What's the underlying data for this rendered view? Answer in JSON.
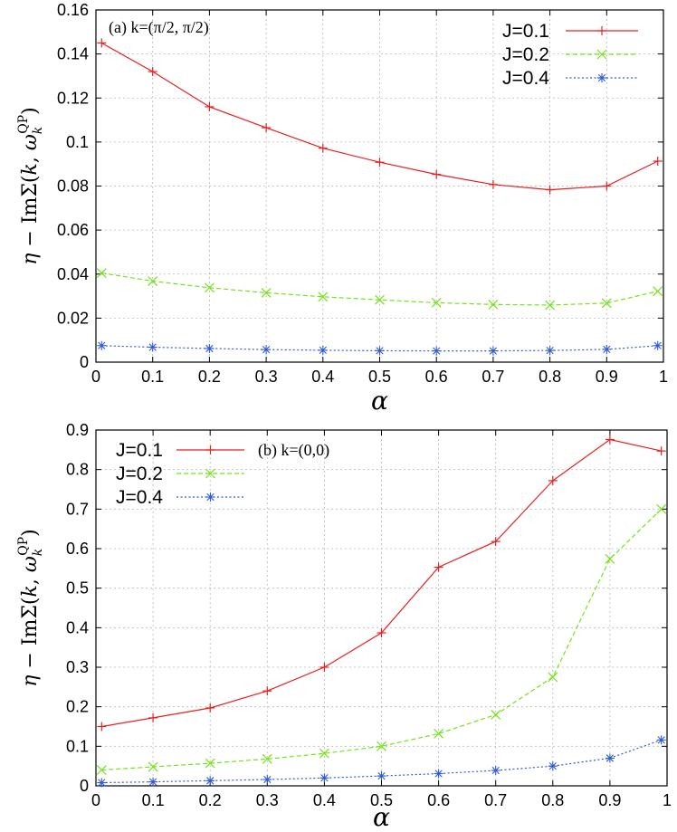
{
  "chart_data": [
    {
      "type": "line",
      "annotation": "(a) k=(π/2, π/2)",
      "xlabel": "α",
      "ylabel": "η − ImΣ(k, ω_k^QP)",
      "xlim": [
        0,
        1
      ],
      "ylim": [
        0,
        0.16
      ],
      "xticks": [
        "0",
        "0.1",
        "0.2",
        "0.3",
        "0.4",
        "0.5",
        "0.6",
        "0.7",
        "0.8",
        "0.9",
        "1"
      ],
      "yticks": [
        "0",
        "0.02",
        "0.04",
        "0.06",
        "0.08",
        "0.1",
        "0.12",
        "0.14",
        "0.16"
      ],
      "grid": true,
      "legend_position": "top-right",
      "series": [
        {
          "name": "J=0.1",
          "color": "#e8201f",
          "marker": "plus",
          "dash": "solid",
          "x": [
            0.01,
            0.1,
            0.2,
            0.3,
            0.4,
            0.5,
            0.6,
            0.7,
            0.8,
            0.9,
            0.99
          ],
          "y": [
            0.145,
            0.132,
            0.116,
            0.1065,
            0.0972,
            0.0908,
            0.0853,
            0.0807,
            0.0783,
            0.08,
            0.0913
          ]
        },
        {
          "name": "J=0.2",
          "color": "#76e21a",
          "marker": "cross",
          "dash": "dashed",
          "x": [
            0.01,
            0.1,
            0.2,
            0.3,
            0.4,
            0.5,
            0.6,
            0.7,
            0.8,
            0.9,
            0.99
          ],
          "y": [
            0.0405,
            0.0368,
            0.0338,
            0.0315,
            0.0297,
            0.0283,
            0.027,
            0.0262,
            0.0259,
            0.0268,
            0.0322
          ]
        },
        {
          "name": "J=0.4",
          "color": "#2e5bd8",
          "marker": "star",
          "dash": "dotted",
          "x": [
            0.01,
            0.1,
            0.2,
            0.3,
            0.4,
            0.5,
            0.6,
            0.7,
            0.8,
            0.9,
            0.99
          ],
          "y": [
            0.0075,
            0.0068,
            0.0062,
            0.0057,
            0.0054,
            0.0052,
            0.0051,
            0.0051,
            0.0053,
            0.0058,
            0.0075
          ]
        }
      ]
    },
    {
      "type": "line",
      "annotation": "(b) k=(0,0)",
      "xlabel": "α",
      "ylabel": "η − ImΣ(k, ω_k^QP)",
      "xlim": [
        0,
        1
      ],
      "ylim": [
        0,
        0.9
      ],
      "xticks": [
        "0",
        "0.1",
        "0.2",
        "0.3",
        "0.4",
        "0.5",
        "0.6",
        "0.7",
        "0.8",
        "0.9",
        "1"
      ],
      "yticks": [
        "0",
        "0.1",
        "0.2",
        "0.3",
        "0.4",
        "0.5",
        "0.6",
        "0.7",
        "0.8",
        "0.9"
      ],
      "grid": true,
      "legend_position": "top-left",
      "series": [
        {
          "name": "J=0.1",
          "color": "#e8201f",
          "marker": "plus",
          "dash": "solid",
          "x": [
            0.01,
            0.1,
            0.2,
            0.3,
            0.4,
            0.5,
            0.6,
            0.7,
            0.8,
            0.9,
            0.99
          ],
          "y": [
            0.15,
            0.172,
            0.197,
            0.24,
            0.3,
            0.387,
            0.553,
            0.618,
            0.772,
            0.876,
            0.847
          ]
        },
        {
          "name": "J=0.2",
          "color": "#76e21a",
          "marker": "cross",
          "dash": "dashed",
          "x": [
            0.01,
            0.1,
            0.2,
            0.3,
            0.4,
            0.5,
            0.6,
            0.7,
            0.8,
            0.9,
            0.99
          ],
          "y": [
            0.04,
            0.048,
            0.057,
            0.068,
            0.082,
            0.1,
            0.132,
            0.18,
            0.275,
            0.574,
            0.7
          ]
        },
        {
          "name": "J=0.4",
          "color": "#2e5bd8",
          "marker": "star",
          "dash": "dotted",
          "x": [
            0.01,
            0.1,
            0.2,
            0.3,
            0.4,
            0.5,
            0.6,
            0.7,
            0.8,
            0.9,
            0.99
          ],
          "y": [
            0.008,
            0.01,
            0.013,
            0.016,
            0.02,
            0.025,
            0.031,
            0.039,
            0.05,
            0.07,
            0.116
          ]
        }
      ]
    }
  ]
}
